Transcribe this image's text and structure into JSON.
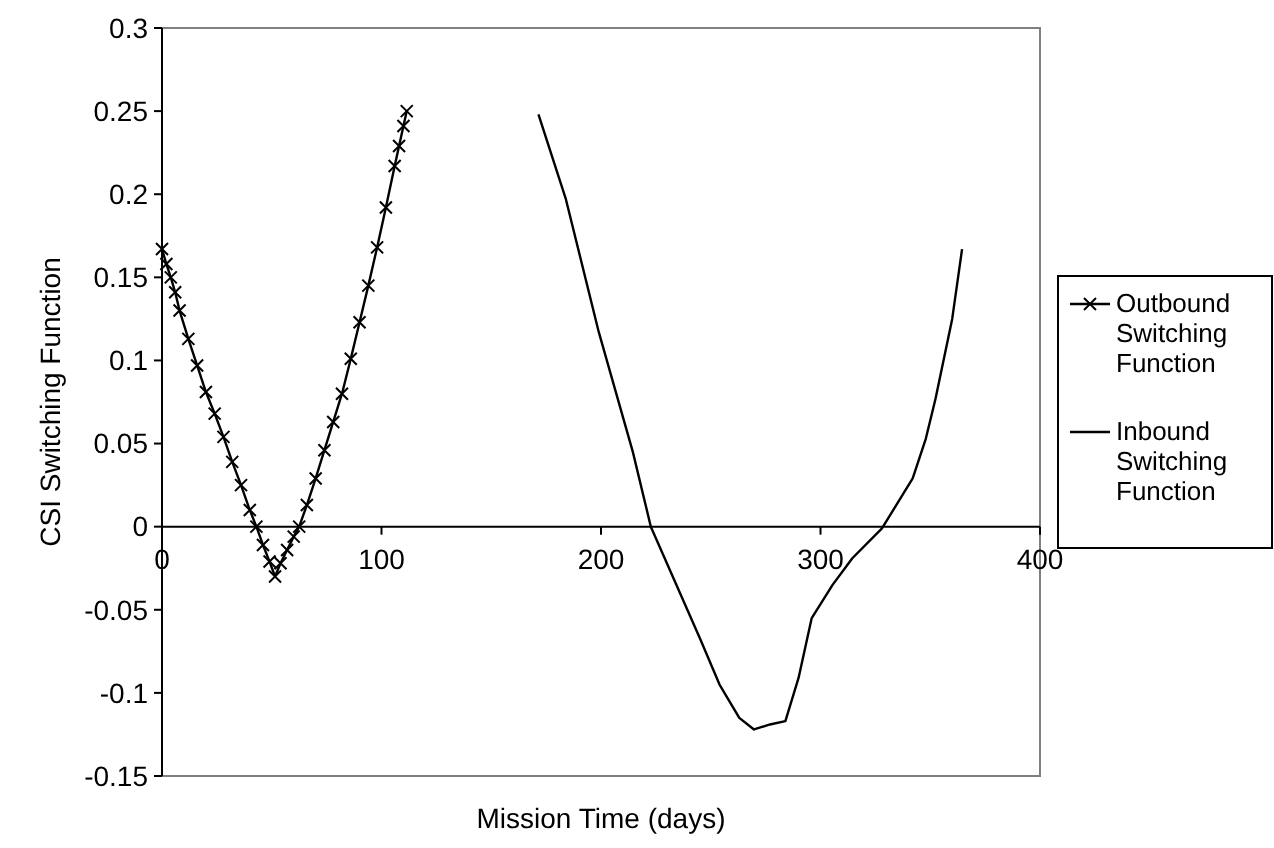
{
  "chart_data": {
    "type": "line",
    "xlabel": "Mission Time (days)",
    "ylabel": "CSI Switching Function",
    "xlim": [
      0,
      400
    ],
    "xticks": [
      0,
      100,
      200,
      300,
      400
    ],
    "ylim": [
      -0.15,
      0.3
    ],
    "yticks": [
      -0.15,
      -0.1,
      -0.05,
      0,
      0.05,
      0.1,
      0.15,
      0.2,
      0.25,
      0.3
    ],
    "grid": false,
    "legend": "right",
    "series": [
      {
        "name": "Outbound Switching Function",
        "color": "#000000",
        "marker": "cross",
        "x": [
          0,
          2,
          4,
          6,
          8,
          12,
          16,
          20,
          24,
          28,
          32,
          36,
          40,
          43,
          46,
          49,
          51.5,
          54,
          57,
          60,
          62.5,
          66,
          70,
          74,
          78,
          82,
          86,
          90,
          94,
          98,
          102,
          106,
          108,
          110,
          111.5
        ],
        "values": [
          0.167,
          0.158,
          0.15,
          0.141,
          0.13,
          0.113,
          0.097,
          0.081,
          0.068,
          0.054,
          0.039,
          0.025,
          0.01,
          0,
          -0.011,
          -0.021,
          -0.03,
          -0.022,
          -0.014,
          -0.006,
          0,
          0.013,
          0.029,
          0.046,
          0.063,
          0.08,
          0.101,
          0.123,
          0.145,
          0.168,
          0.192,
          0.217,
          0.229,
          0.241,
          0.25
        ]
      },
      {
        "name": "Inbound Switching Function",
        "color": "#000000",
        "marker": "none",
        "x": [
          171.5,
          184,
          199,
          214.5,
          222.7,
          245,
          254,
          263,
          269.7,
          277,
          284,
          290,
          296,
          305.5,
          314.5,
          328,
          342,
          348,
          352.4,
          360,
          364.5
        ],
        "values": [
          0.248,
          0.197,
          0.117,
          0.045,
          0,
          -0.067,
          -0.095,
          -0.115,
          -0.122,
          -0.119,
          -0.117,
          -0.091,
          -0.055,
          -0.035,
          -0.019,
          -0.001,
          0.029,
          0.053,
          0.077,
          0.125,
          0.167
        ]
      }
    ]
  }
}
